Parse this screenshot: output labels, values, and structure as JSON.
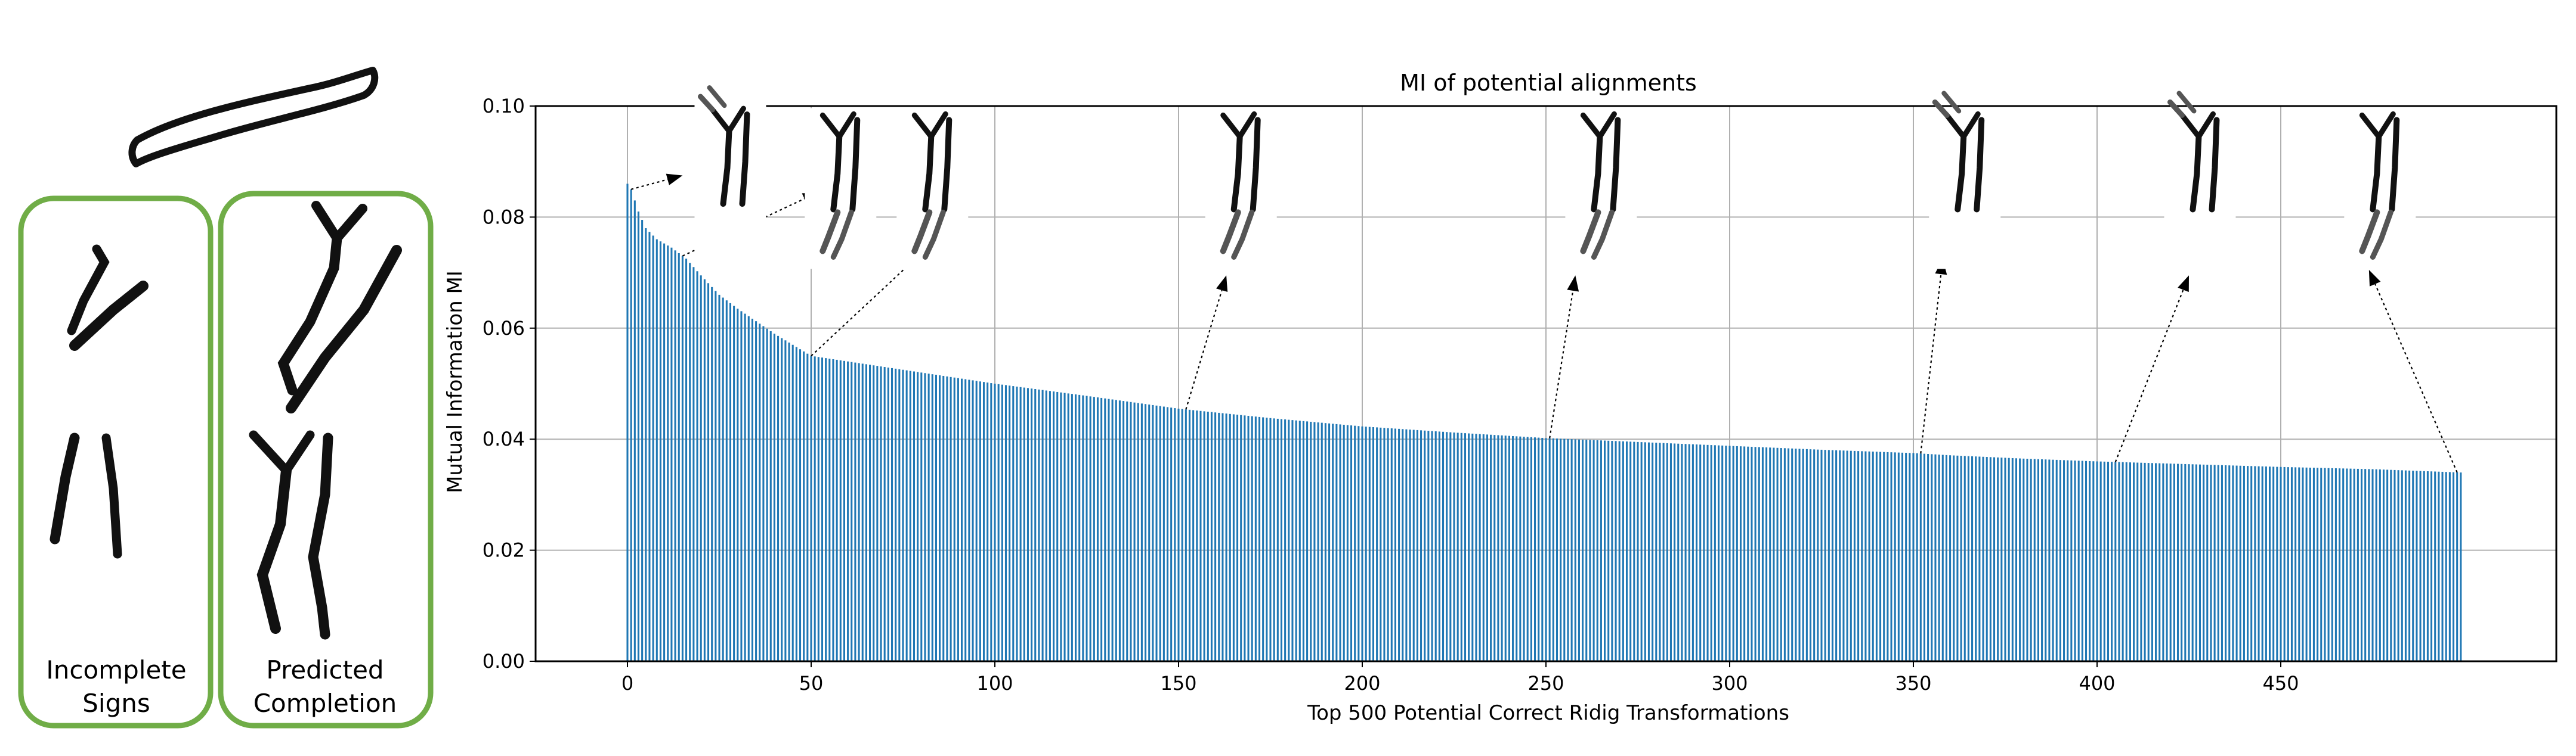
{
  "left_panels": {
    "incomplete": {
      "label_line1": "Incomplete",
      "label_line2": "Signs"
    },
    "predicted": {
      "label_line1": "Predicted",
      "label_line2": "Completion"
    }
  },
  "colors": {
    "bar": "#1f77b4",
    "panel_border": "#70ad47",
    "glyph": "#111111",
    "grid": "#b0b0b0"
  },
  "chart_data": {
    "type": "bar",
    "title": "MI of potential alignments",
    "xlabel": "Top 500 Potential Correct Ridig Transformations",
    "ylabel": "Mutual Information MI",
    "xlim": [
      -25,
      525
    ],
    "ylim": [
      0.0,
      0.1
    ],
    "xticks": [
      0,
      50,
      100,
      150,
      200,
      250,
      300,
      350,
      400,
      450
    ],
    "yticks": [
      0.0,
      0.02,
      0.04,
      0.06,
      0.08,
      0.1
    ],
    "xtick_labels": [
      "0",
      "50",
      "100",
      "150",
      "200",
      "250",
      "300",
      "350",
      "400",
      "450"
    ],
    "ytick_labels": [
      "0.00",
      "0.02",
      "0.04",
      "0.06",
      "0.08",
      "0.10"
    ],
    "grid": true,
    "n_bars": 500,
    "bar_width": 0.5,
    "profile_x": [
      0,
      1,
      2,
      3,
      5,
      8,
      12,
      16,
      20,
      25,
      30,
      40,
      50,
      60,
      80,
      100,
      125,
      150,
      175,
      200,
      225,
      250,
      275,
      300,
      325,
      350,
      360,
      380,
      400,
      425,
      450,
      475,
      499
    ],
    "profile_y": [
      0.086,
      0.085,
      0.083,
      0.081,
      0.078,
      0.076,
      0.0745,
      0.0725,
      0.0695,
      0.066,
      0.0635,
      0.059,
      0.055,
      0.054,
      0.052,
      0.05,
      0.0478,
      0.0455,
      0.0438,
      0.0423,
      0.0412,
      0.0402,
      0.0395,
      0.0388,
      0.0381,
      0.0375,
      0.0371,
      0.0365,
      0.036,
      0.0355,
      0.035,
      0.0346,
      0.034
    ],
    "annotation_x": [
      1,
      15,
      50,
      152,
      251,
      352,
      405,
      498
    ],
    "insets": [
      {
        "id": "inset-1",
        "type": "y-top",
        "at": [
          28,
          0.084
        ]
      },
      {
        "id": "inset-2",
        "type": "y-bottom",
        "at": [
          58,
          0.083
        ]
      },
      {
        "id": "inset-3",
        "type": "y-bottom",
        "at": [
          83,
          0.083
        ]
      },
      {
        "id": "inset-4",
        "type": "y-bottom",
        "at": [
          167,
          0.083
        ]
      },
      {
        "id": "inset-5",
        "type": "y-bottom",
        "at": [
          265,
          0.083
        ]
      },
      {
        "id": "inset-6",
        "type": "y-top",
        "at": [
          364,
          0.083
        ]
      },
      {
        "id": "inset-7",
        "type": "y-top",
        "at": [
          428,
          0.083
        ]
      },
      {
        "id": "inset-8",
        "type": "y-bottom",
        "at": [
          477,
          0.083
        ]
      }
    ],
    "arrows": [
      {
        "from_x": 1,
        "to": [
          15,
          0.0875
        ]
      },
      {
        "from_x": 15,
        "to": [
          52,
          0.0845
        ]
      },
      {
        "from_x": 50,
        "to": [
          80,
          0.0735
        ]
      },
      {
        "from_x": 152,
        "to": [
          163,
          0.0695
        ]
      },
      {
        "from_x": 251,
        "to": [
          258,
          0.0695
        ]
      },
      {
        "from_x": 352,
        "to": [
          358,
          0.0725
        ]
      },
      {
        "from_x": 405,
        "to": [
          425,
          0.0695
        ]
      },
      {
        "from_x": 498,
        "to": [
          474,
          0.0705
        ]
      }
    ]
  }
}
